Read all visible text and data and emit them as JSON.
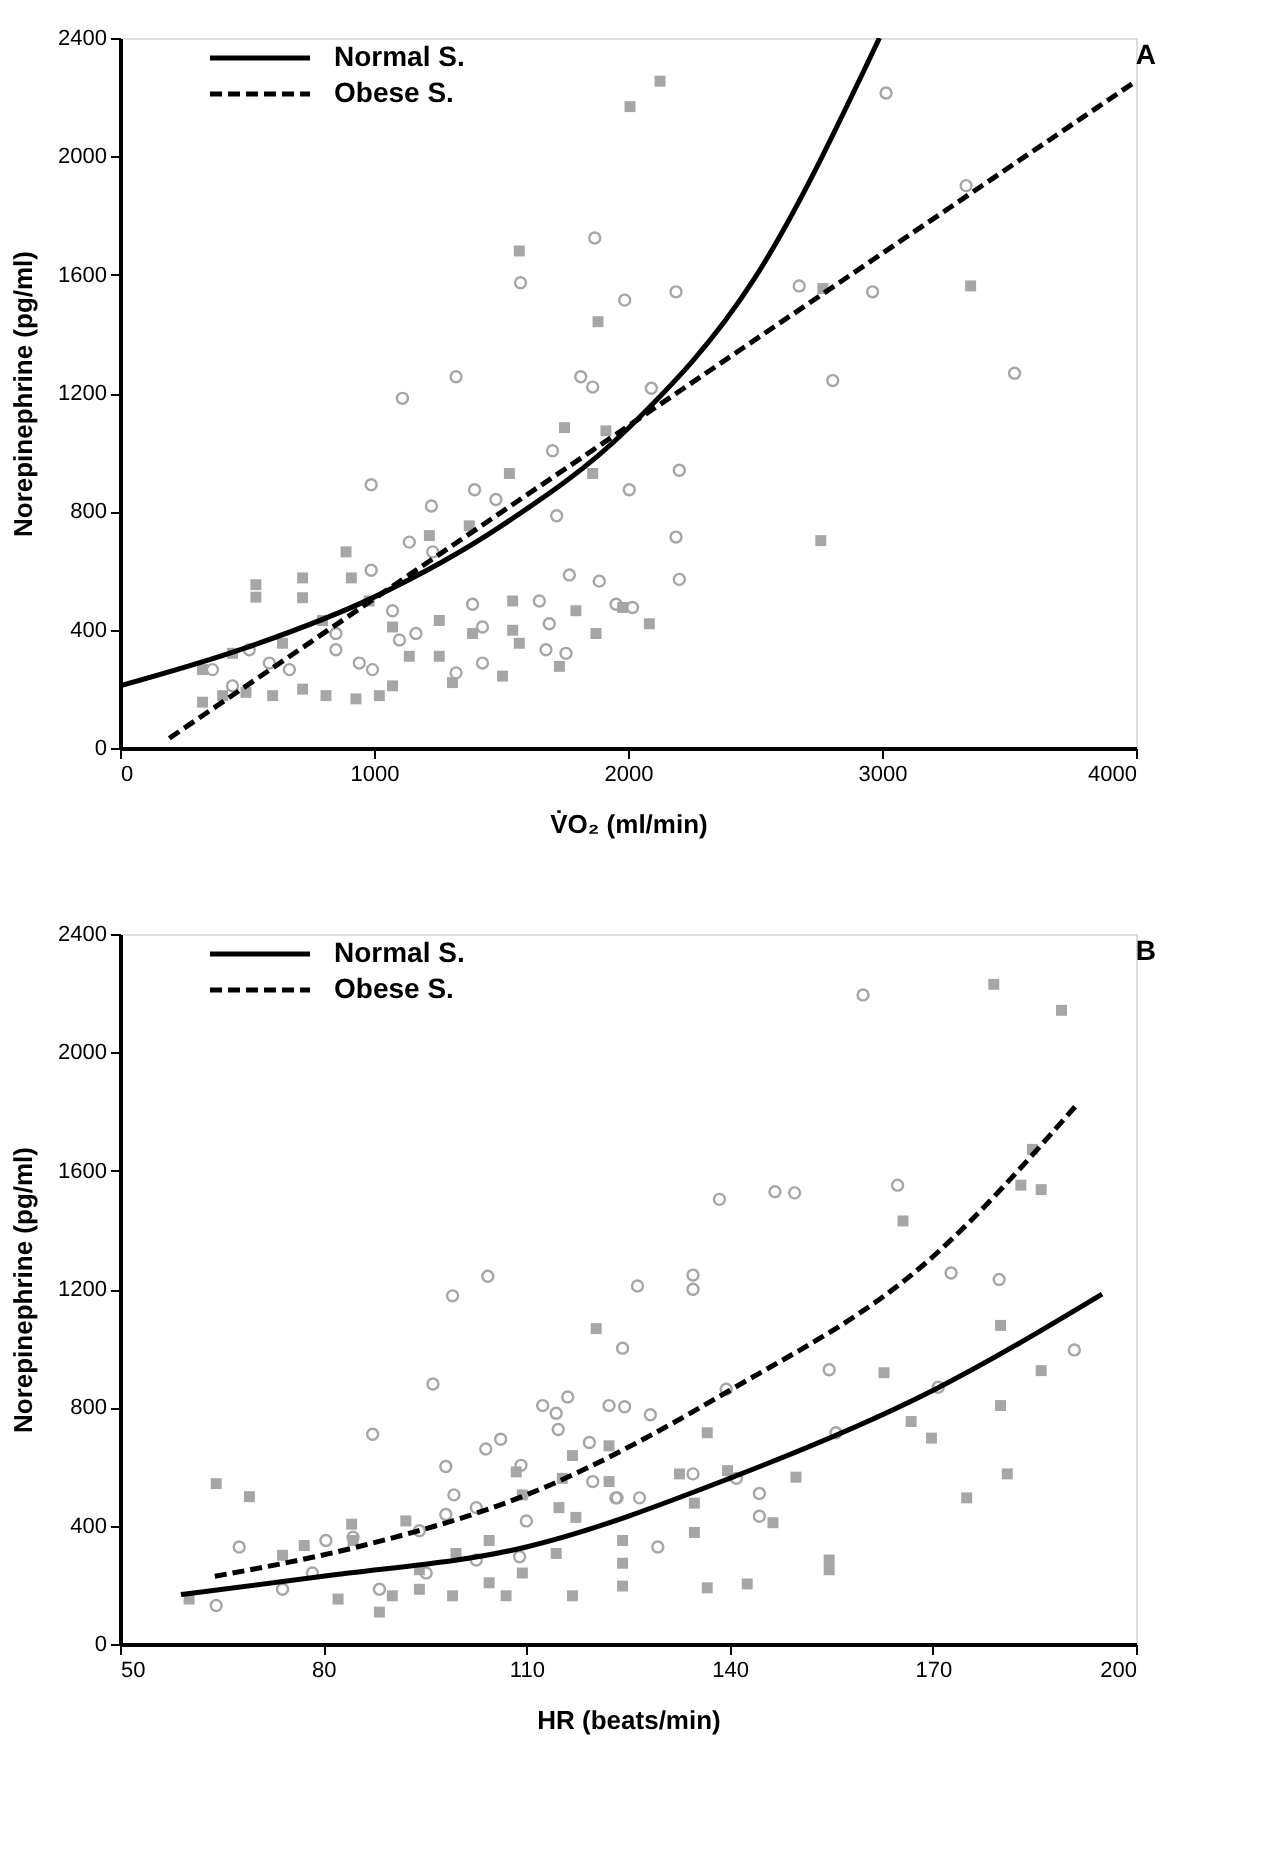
{
  "chart_data": [
    {
      "type": "scatter",
      "xlabel": "V̇O₂ (ml/min)",
      "ylabel": "Norepinephrine (pg/ml)",
      "annotations": [
        "A"
      ],
      "xlim": [
        0,
        4000
      ],
      "xticks": [
        0,
        1000,
        2000,
        3000,
        4000
      ],
      "ylim": [
        0,
        2400
      ],
      "yticks": [
        0,
        400,
        800,
        1200,
        1600,
        2000,
        2400
      ],
      "grid": false,
      "legend": "top left",
      "series": [
        {
          "marker": "square",
          "color": "#a6a6a6",
          "x": [
            2008,
            2126,
            1572,
            1882,
            1750,
            1913,
            1533,
            1861,
            535,
            535,
            719,
            890,
            911,
            719,
            1218,
            1375,
            1546,
            1874,
            2084,
            1795,
            1257,
            1073,
            797,
            981,
            1388,
            1546,
            1572,
            1730,
            1139,
            1257,
            1309,
            1506,
            1073,
            1021,
            929,
            811,
            719,
            601,
            496,
            404,
            325,
            325,
            443,
            640,
            2767,
            3349,
            2759,
            1979
          ],
          "values": [
            2168,
            2254,
            1680,
            1441,
            1083,
            1072,
            928,
            928,
            552,
            510,
            575,
            663,
            575,
            508,
            718,
            751,
            497,
            387,
            420,
            464,
            431,
            409,
            431,
            497,
            387,
            398,
            354,
            276,
            310,
            310,
            221,
            243,
            210,
            177,
            166,
            177,
            199,
            177,
            188,
            177,
            155,
            265,
            320,
            354,
            1553,
            1562,
            701,
            475
          ]
        },
        {
          "marker": "circle",
          "color": "#a6a6a6",
          "x": [
            1869,
            1577,
            1987,
            1323,
            1112,
            1814,
            1861,
            2092,
            1703,
            989,
            1396,
            1226,
            2005,
            1480,
            1139,
            1231,
            989,
            1719,
            1769,
            1887,
            1953,
            2018,
            1388,
            1651,
            1690,
            1427,
            1677,
            1756,
            1427,
            1323,
            1100,
            1165,
            1073,
            942,
            850,
            994,
            667,
            588,
            443,
            364,
            509,
            850,
            3016,
            3331,
            2674,
            2963,
            2189,
            3522,
            2806,
            2202,
            2189,
            2202
          ],
          "values": [
            1724,
            1573,
            1514,
            1255,
            1182,
            1255,
            1220,
            1216,
            1005,
            890,
            873,
            818,
            873,
            840,
            696,
            663,
            601,
            785,
            585,
            564,
            486,
            475,
            486,
            497,
            420,
            409,
            332,
            320,
            287,
            254,
            365,
            387,
            464,
            287,
            332,
            265,
            265,
            287,
            210,
            265,
            332,
            387,
            2214,
            1901,
            1562,
            1542,
            1542,
            1267,
            1242,
            939,
            713,
            570
          ]
        },
        {
          "type": "line",
          "name": "Normal S.",
          "color": "#000000",
          "line_style": "solid",
          "x": [
            0,
            500,
            1000,
            1500,
            2000,
            2500,
            2990
          ],
          "values": [
            210,
            340,
            510,
            750,
            1080,
            1590,
            2400
          ]
        },
        {
          "type": "line",
          "name": "Obese S.",
          "color": "#000000",
          "line_style": "dashed",
          "x": [
            194,
            2000,
            4000
          ],
          "values": [
            33,
            1088,
            2254
          ]
        }
      ]
    },
    {
      "type": "scatter",
      "xlabel": "HR (beats/min)",
      "ylabel": "Norepinephrine (pg/ml)",
      "annotations": [
        "B"
      ],
      "xlim": [
        50,
        200
      ],
      "xticks": [
        50,
        80,
        110,
        140,
        170,
        200
      ],
      "ylim": [
        0,
        2400
      ],
      "yticks": [
        0,
        400,
        800,
        1200,
        1600,
        2000,
        2400
      ],
      "grid": false,
      "legend": "top left",
      "series": [
        {
          "marker": "square",
          "color": "#a6a6a6",
          "x": [
            64.2,
            69.1,
            120.3,
            74.0,
            77.2,
            84.2,
            84.4,
            92.2,
            82.2,
            88.3,
            90.2,
            94.2,
            94.2,
            99.1,
            104.5,
            107,
            109.4,
            104.5,
            108.5,
            109.4,
            114.8,
            116.8,
            115.3,
            122.2,
            122.2,
            117.3,
            124.2,
            124.2,
            124.2,
            116.8,
            99.6,
            114.4,
            60.2,
            179,
            189,
            165.6,
            186,
            183,
            184.7,
            180,
            162.8,
            186,
            180,
            166.8,
            169.8,
            181,
            175,
            149.8,
            146.4,
            134.8,
            134.8,
            132.6,
            139.7,
            136.7,
            154.7,
            154.7,
            136.7,
            142.6
          ],
          "values": [
            542,
            498,
            1066,
            300,
            333,
            405,
            350,
            416,
            152,
            108,
            163,
            185,
            251,
            163,
            207,
            163,
            240,
            350,
            582,
            504,
            461,
            637,
            560,
            670,
            549,
            428,
            350,
            273,
            196,
            163,
            306,
            306,
            152,
            2230,
            2142,
            1430,
            1536,
            1551,
            1672,
            1077,
            917,
            924,
            806,
            752,
            696,
            575,
            494,
            564,
            410,
            377,
            476,
            575,
            586,
            714,
            284,
            251,
            190,
            203
          ]
        },
        {
          "marker": "circle",
          "color": "#a6a6a6",
          "x": [
            104.3,
            99.1,
            96.2,
            87.3,
            126.4,
            124.2,
            112.4,
            116.1,
            122.2,
            124.5,
            128.3,
            114.7,
            104,
            106.2,
            119.3,
            109.2,
            98.1,
            99.3,
            102.6,
            98.1,
            94.2,
            110,
            123.2,
            84.4,
            80.4,
            67.6,
            74,
            78.4,
            64.2,
            88.3,
            95.2,
            102.6,
            109,
            119.8,
            114.4,
            129.4,
            159.7,
            146.7,
            149.6,
            164.8,
            138.5,
            134.6,
            134.6,
            172.7,
            179.8,
            190.9,
            154.7,
            139.5,
            170.8,
            155.7,
            134.6,
            141,
            144.4,
            144.4,
            123.4,
            126.7
          ],
          "values": [
            1243,
            1177,
            879,
            709,
            1210,
            1000,
            806,
            835,
            806,
            802,
            775,
            725,
            659,
            692,
            681,
            604,
            600,
            504,
            461,
            438,
            383,
            416,
            494,
            361,
            350,
            328,
            185,
            240,
            130,
            185,
            240,
            284,
            295,
            549,
            780,
            328,
            2194,
            1529,
            1525,
            1551,
            1503,
            1247,
            1199,
            1254,
            1232,
            994,
            927,
            861,
            868,
            714,
            575,
            560,
            509,
            432,
            494,
            494
          ]
        },
        {
          "type": "line",
          "name": "Normal S.",
          "color": "#000000",
          "line_style": "solid",
          "x": [
            59,
            80,
            110,
            140,
            170,
            195
          ],
          "values": [
            167,
            229,
            328,
            560,
            857,
            1183
          ]
        },
        {
          "type": "line",
          "name": "Obese S.",
          "color": "#000000",
          "line_style": "dashed",
          "x": [
            64,
            85,
            110,
            140,
            170,
            191
          ],
          "values": [
            229,
            328,
            504,
            857,
            1309,
            1816
          ]
        }
      ]
    }
  ]
}
